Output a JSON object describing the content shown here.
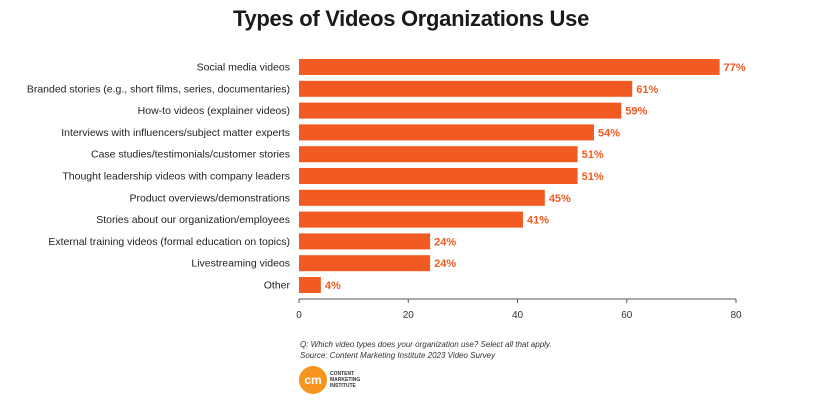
{
  "chart_data": {
    "type": "bar",
    "orientation": "horizontal",
    "title": "Types of Videos Organizations Use",
    "categories": [
      "Social media videos",
      "Branded stories (e.g., short films, series, documentaries)",
      "How-to videos (explainer videos)",
      "Interviews with influencers/subject matter experts",
      "Case studies/testimonials/customer stories",
      "Thought leadership videos with company leaders",
      "Product overviews/demonstrations",
      "Stories about our organization/employees",
      "External training videos (formal education on topics)",
      "Livestreaming videos",
      "Other"
    ],
    "values": [
      77,
      61,
      59,
      54,
      51,
      51,
      45,
      41,
      24,
      24,
      4
    ],
    "value_labels": [
      "77%",
      "61%",
      "59%",
      "54%",
      "51%",
      "51%",
      "45%",
      "41%",
      "24%",
      "24%",
      "4%"
    ],
    "xlim": [
      0,
      80
    ],
    "xticks": [
      0,
      20,
      40,
      60,
      80
    ],
    "xlabel": "",
    "ylabel": "",
    "grid": false,
    "legend": "none",
    "bar_color": "#f15a22",
    "label_color": "#f15a22"
  },
  "notes": {
    "question": "Q: Which video types does your organization use? Select all that apply.",
    "source": "Source: Content Marketing Institute 2023 Video Survey"
  },
  "logo": {
    "mark": "cm",
    "line1": "CONTENT",
    "line2": "MARKETING",
    "line3": "INSTITUTE",
    "color": "#f7941d"
  }
}
